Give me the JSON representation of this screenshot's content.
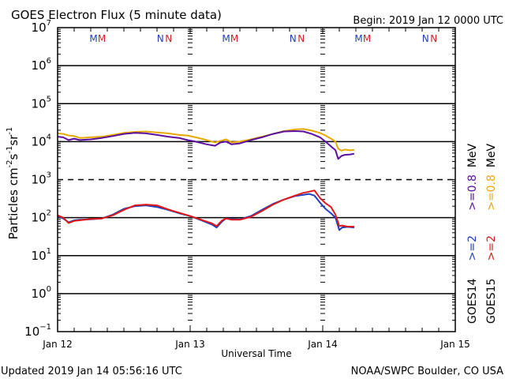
{
  "chart_data": {
    "type": "line",
    "title": "GOES Electron Flux (5 minute data)",
    "subtitle": "Begin: 2019 Jan 12 0000 UTC",
    "xlabel": "Universal Time",
    "ylabel_parts": {
      "base": "Particles cm",
      "exp1": "-2",
      "mid1": "s",
      "exp2": "-1",
      "mid2": "sr",
      "exp3": "-1"
    },
    "yscale": "log",
    "ylim_exp": [
      -1,
      7
    ],
    "y_tick_exponents": [
      7,
      6,
      5,
      4,
      3,
      2,
      1,
      0,
      -1
    ],
    "y_tick_base": "10",
    "xlim_hours": [
      0,
      72
    ],
    "x_ticks": [
      {
        "hour": 0,
        "label": "Jan 12"
      },
      {
        "hour": 24,
        "label": "Jan 13"
      },
      {
        "hour": 48,
        "label": "Jan 14"
      },
      {
        "hour": 72,
        "label": "Jan 15"
      }
    ],
    "threshold_line_exp": 3,
    "gridlines_exp": [
      6,
      5,
      4,
      2,
      1,
      0
    ],
    "markers": [
      {
        "hour": 6.5,
        "label": "M",
        "color": "#1f3fbf"
      },
      {
        "hour": 8.0,
        "label": "M",
        "color": "#d42020"
      },
      {
        "hour": 18.6,
        "label": "N",
        "color": "#1f3fbf"
      },
      {
        "hour": 20.1,
        "label": "N",
        "color": "#d42020"
      },
      {
        "hour": 30.5,
        "label": "M",
        "color": "#1f3fbf"
      },
      {
        "hour": 32.0,
        "label": "M",
        "color": "#d42020"
      },
      {
        "hour": 42.6,
        "label": "N",
        "color": "#1f3fbf"
      },
      {
        "hour": 44.1,
        "label": "N",
        "color": "#d42020"
      },
      {
        "hour": 54.5,
        "label": "M",
        "color": "#1f3fbf"
      },
      {
        "hour": 56.0,
        "label": "M",
        "color": "#d42020"
      },
      {
        "hour": 66.6,
        "label": "N",
        "color": "#1f3fbf"
      },
      {
        "hour": 68.1,
        "label": "N",
        "color": "#d42020"
      }
    ],
    "series": [
      {
        "name": "GOES15 >=0.8 MeV",
        "color": "#e8a800",
        "hours": [
          0,
          1,
          2,
          3,
          4,
          6,
          8,
          10,
          12,
          14,
          16,
          18,
          20,
          22,
          23.5,
          25,
          27,
          28.5,
          29.5,
          30.5,
          31.5,
          33,
          35,
          37,
          39,
          41,
          43,
          44.5,
          46,
          47.5,
          48.5,
          49.5,
          50.3,
          50.8,
          51.4,
          52,
          53,
          53.7
        ],
        "values": [
          16500,
          16000,
          14500,
          14000,
          12500,
          13000,
          13500,
          15000,
          17000,
          18000,
          18500,
          17500,
          16500,
          15000,
          14500,
          13000,
          11000,
          9500,
          10500,
          11500,
          9500,
          10000,
          11500,
          13500,
          16000,
          19000,
          21000,
          21500,
          19500,
          17000,
          14500,
          12000,
          10000,
          6500,
          5800,
          6200,
          5900,
          6100
        ]
      },
      {
        "name": "GOES14 >=0.8 MeV",
        "color": "#5a0fa0",
        "hours": [
          0,
          1,
          2,
          3,
          4,
          6,
          8,
          10,
          12,
          14,
          16,
          18,
          20,
          22,
          23.5,
          25,
          27,
          28.5,
          29.5,
          30.5,
          31.5,
          33,
          35,
          37,
          39,
          41,
          43,
          44.5,
          46,
          47.5,
          48.5,
          49.5,
          50.3,
          50.8,
          51.4,
          52,
          53,
          53.7
        ],
        "values": [
          13500,
          13000,
          11000,
          12000,
          11000,
          11500,
          12500,
          14000,
          16000,
          17000,
          16500,
          15000,
          13500,
          12500,
          11000,
          10000,
          8500,
          7800,
          9500,
          10000,
          8500,
          9000,
          11000,
          13000,
          16000,
          18500,
          19000,
          18500,
          16000,
          13000,
          10000,
          7500,
          6000,
          3500,
          4200,
          4500,
          4600,
          4800
        ]
      },
      {
        "name": "GOES14 >=2 MeV",
        "color": "#1f3fbf",
        "hours": [
          0,
          1,
          2,
          3,
          4,
          6,
          8,
          10,
          12,
          14,
          16,
          18,
          20,
          22,
          24,
          26,
          28,
          28.8,
          29.8,
          30.5,
          31.5,
          33,
          35,
          37,
          39,
          41,
          43,
          44.5,
          45.5,
          46.5,
          47.5,
          48.5,
          49.5,
          50.3,
          51,
          51.5,
          52.5,
          53.7
        ],
        "values": [
          110,
          95,
          75,
          85,
          88,
          90,
          95,
          120,
          170,
          200,
          210,
          190,
          160,
          130,
          110,
          85,
          65,
          55,
          80,
          95,
          92,
          90,
          110,
          160,
          230,
          300,
          370,
          400,
          420,
          380,
          250,
          170,
          130,
          100,
          47,
          55,
          57,
          55
        ]
      },
      {
        "name": "GOES15 >=2 MeV",
        "color": "#e01818",
        "hours": [
          0,
          1,
          2,
          3,
          4,
          6,
          8,
          10,
          12,
          14,
          16,
          18,
          20,
          22,
          24,
          26,
          28,
          28.8,
          29.8,
          30.5,
          31.5,
          33,
          35,
          37,
          39,
          41,
          43,
          44.5,
          45.5,
          46.5,
          47.5,
          48.5,
          49.5,
          50.3,
          51,
          51.5,
          52.5,
          53.7
        ],
        "values": [
          115,
          100,
          72,
          82,
          85,
          92,
          95,
          115,
          160,
          210,
          220,
          210,
          165,
          135,
          110,
          88,
          70,
          60,
          85,
          95,
          88,
          88,
          105,
          150,
          220,
          300,
          380,
          450,
          480,
          520,
          330,
          240,
          190,
          120,
          60,
          62,
          58,
          58
        ]
      }
    ],
    "legend": {
      "placement": "right",
      "entries": [
        {
          "sat": "GOES14",
          "sat_color": "#000000",
          "parts": [
            {
              "text": ">=2",
              "color": "#1f3fbf"
            },
            {
              "text": ">=0.8",
              "color": "#5a0fa0"
            }
          ],
          "unit": "MeV"
        },
        {
          "sat": "GOES15",
          "sat_color": "#000000",
          "parts": [
            {
              "text": ">=2",
              "color": "#e01818"
            },
            {
              "text": ">=0.8",
              "color": "#e8a800"
            }
          ],
          "unit": "MeV"
        }
      ]
    }
  },
  "footer": {
    "updated": "Updated 2019 Jan 14 05:56:16 UTC",
    "credit": "NOAA/SWPC Boulder, CO USA"
  }
}
